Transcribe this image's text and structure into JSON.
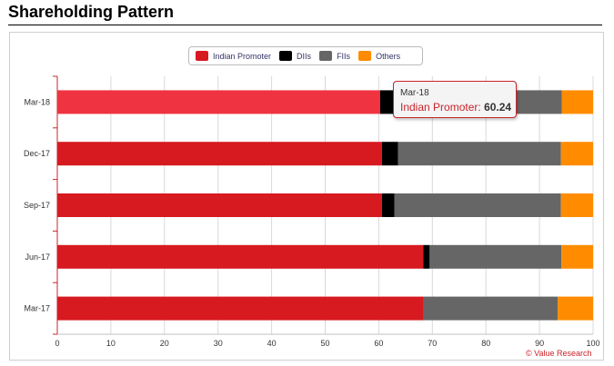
{
  "page": {
    "title": "Shareholding Pattern"
  },
  "credit": "© Value Research",
  "tooltip": {
    "category": "Mar-18",
    "series": "Indian Promoter",
    "value": "60.24"
  },
  "colors": {
    "indian_promoter": "#d71920",
    "indian_promoter_hover": "#ef3340",
    "diis": "#000000",
    "fiis": "#666666",
    "others": "#ff8c00",
    "tooltip_border": "#c8242b"
  },
  "chart_data": {
    "type": "bar",
    "orientation": "horizontal",
    "stacked": true,
    "title": "",
    "xlabel": "",
    "ylabel": "",
    "xlim": [
      0,
      100
    ],
    "x_ticks": [
      "0",
      "10",
      "20",
      "30",
      "40",
      "50",
      "60",
      "70",
      "80",
      "90",
      "100"
    ],
    "categories": [
      "Mar-18",
      "Dec-17",
      "Sep-17",
      "Jun-17",
      "Mar-17"
    ],
    "series": [
      {
        "name": "Indian Promoter",
        "color": "#d71920",
        "values": [
          60.24,
          60.6,
          60.6,
          68.3,
          68.4
        ]
      },
      {
        "name": "DIIs",
        "color": "#000000",
        "values": [
          3.4,
          3.0,
          2.3,
          1.2,
          0.0
        ]
      },
      {
        "name": "FIIs",
        "color": "#666666",
        "values": [
          30.5,
          30.4,
          31.1,
          24.6,
          25.0
        ]
      },
      {
        "name": "Others",
        "color": "#ff8c00",
        "values": [
          5.86,
          6.0,
          6.0,
          5.9,
          6.6
        ]
      }
    ],
    "grid": true,
    "legend_position": "top-center",
    "highlighted": {
      "category": "Mar-18",
      "series": "Indian Promoter"
    }
  }
}
